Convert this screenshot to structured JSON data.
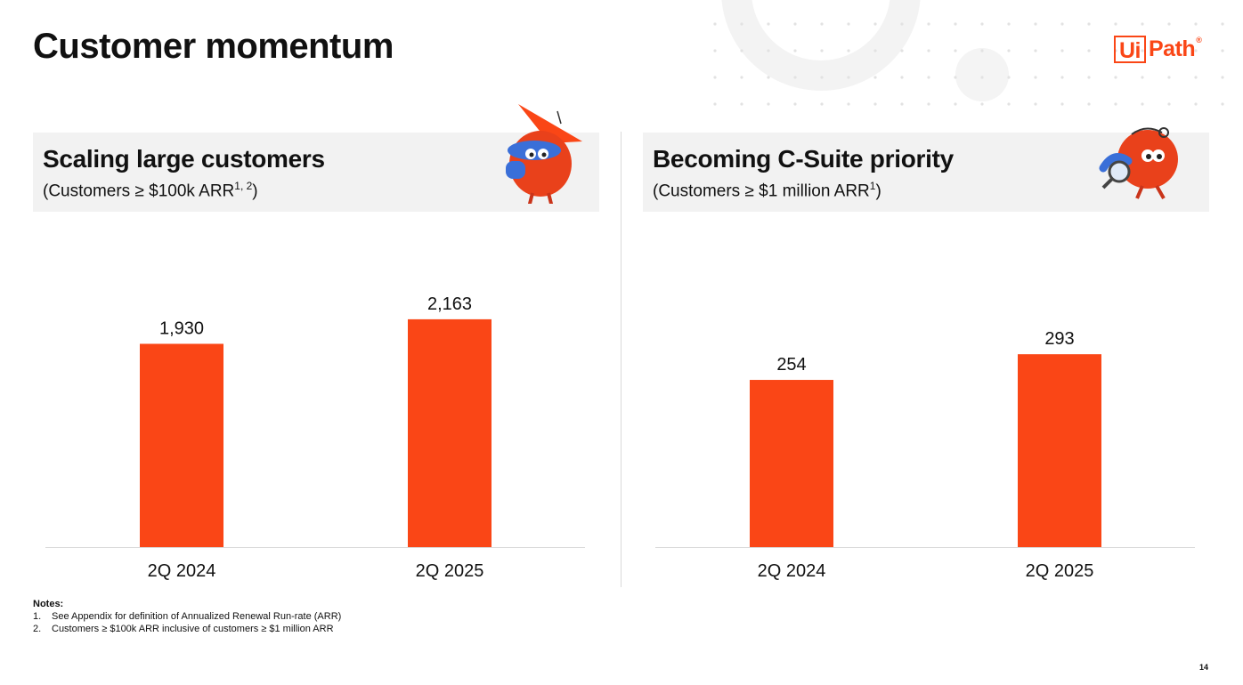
{
  "page": {
    "title": "Customer momentum",
    "page_number": "14"
  },
  "logo": {
    "box_text": "Ui",
    "text": "Path",
    "reg": "®"
  },
  "colors": {
    "accent": "#fa4616",
    "panel_bg": "#f2f2f2",
    "axis": "#d9d9d9"
  },
  "panels": [
    {
      "title": "Scaling large customers",
      "subtitle_text": "(Customers ≥ $100k ARR",
      "subtitle_sup": "1, 2",
      "subtitle_end": ")",
      "mascot_icon": "robot-mascot-graduation-cap-icon"
    },
    {
      "title": "Becoming C-Suite priority",
      "subtitle_text": "(Customers ≥ $1 million ARR",
      "subtitle_sup": "1",
      "subtitle_end": ")",
      "mascot_icon": "robot-mascot-magnifier-icon"
    }
  ],
  "chart_data": [
    {
      "type": "bar",
      "title": "Scaling large customers",
      "subtitle": "(Customers ≥ $100k ARR1, 2)",
      "categories": [
        "2Q 2024",
        "2Q 2025"
      ],
      "values": [
        1930,
        2163
      ],
      "value_labels": [
        "1,930",
        "2,163"
      ],
      "ylim": [
        0,
        2500
      ],
      "xlabel": "",
      "ylabel": "",
      "grid": false,
      "legend": "none"
    },
    {
      "type": "bar",
      "title": "Becoming C-Suite priority",
      "subtitle": "(Customers ≥ $1 million ARR1)",
      "categories": [
        "2Q 2024",
        "2Q 2025"
      ],
      "values": [
        254,
        293
      ],
      "value_labels": [
        "254",
        "293"
      ],
      "ylim": [
        0,
        400
      ],
      "xlabel": "",
      "ylabel": "",
      "grid": false,
      "legend": "none"
    }
  ],
  "notes": {
    "title": "Notes:",
    "items": [
      {
        "num": "1.",
        "text": "See Appendix for definition of Annualized Renewal Run-rate (ARR)"
      },
      {
        "num": "2.",
        "text": "Customers ≥ $100k ARR inclusive of customers ≥ $1 million ARR"
      }
    ]
  }
}
